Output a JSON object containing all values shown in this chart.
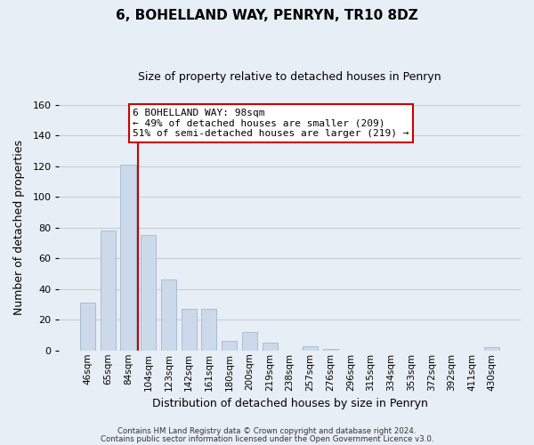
{
  "title": "6, BOHELLAND WAY, PENRYN, TR10 8DZ",
  "subtitle": "Size of property relative to detached houses in Penryn",
  "xlabel": "Distribution of detached houses by size in Penryn",
  "ylabel": "Number of detached properties",
  "bar_labels": [
    "46sqm",
    "65sqm",
    "84sqm",
    "104sqm",
    "123sqm",
    "142sqm",
    "161sqm",
    "180sqm",
    "200sqm",
    "219sqm",
    "238sqm",
    "257sqm",
    "276sqm",
    "296sqm",
    "315sqm",
    "334sqm",
    "353sqm",
    "372sqm",
    "392sqm",
    "411sqm",
    "430sqm"
  ],
  "bar_values": [
    31,
    78,
    121,
    75,
    46,
    27,
    27,
    6,
    12,
    5,
    0,
    3,
    1,
    0,
    0,
    0,
    0,
    0,
    0,
    0,
    2
  ],
  "bar_color": "#ccd9ea",
  "bar_edge_color": "#a8bdd4",
  "vline_x": 2.5,
  "vline_color": "#cc0000",
  "ylim": [
    0,
    160
  ],
  "yticks": [
    0,
    20,
    40,
    60,
    80,
    100,
    120,
    140,
    160
  ],
  "annotation_text": "6 BOHELLAND WAY: 98sqm\n← 49% of detached houses are smaller (209)\n51% of semi-detached houses are larger (219) →",
  "annotation_box_color": "#ffffff",
  "annotation_box_edge": "#cc0000",
  "footer_line1": "Contains HM Land Registry data © Crown copyright and database right 2024.",
  "footer_line2": "Contains public sector information licensed under the Open Government Licence v3.0.",
  "background_color": "#e8eef5",
  "plot_background_color": "#e8eef5",
  "grid_color": "#c5cdd8"
}
